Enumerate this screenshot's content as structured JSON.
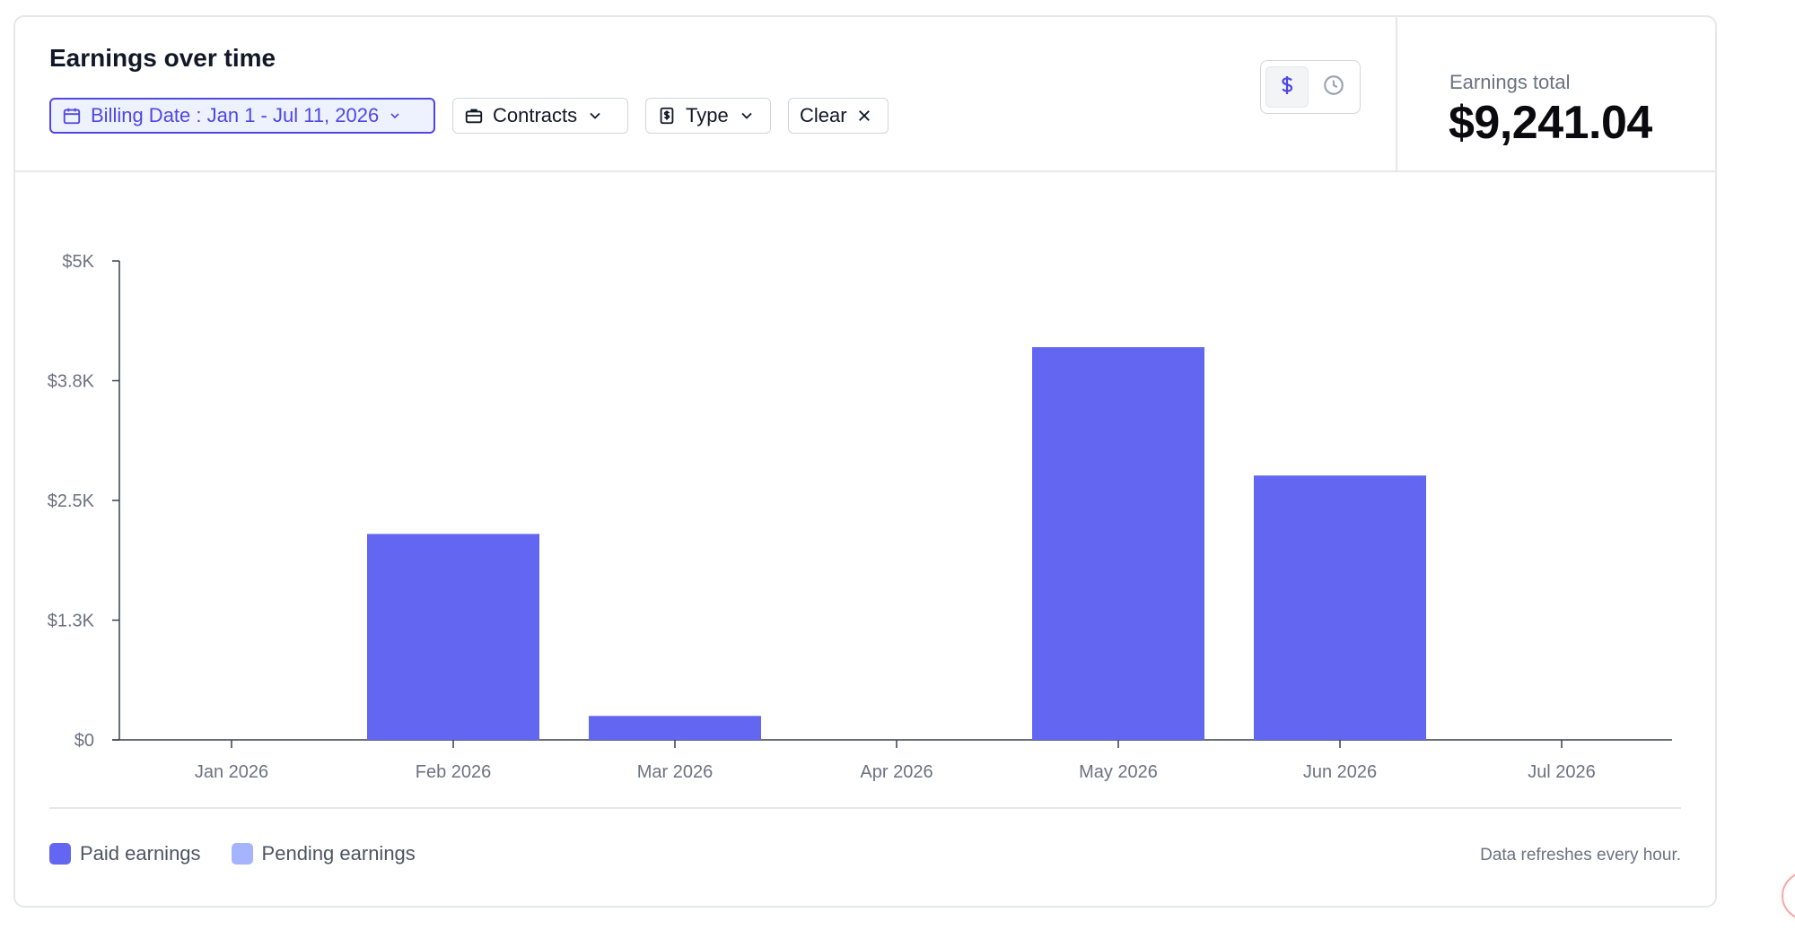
{
  "header": {
    "title": "Earnings over time"
  },
  "filters": {
    "billing_date": "Billing Date : Jan 1 - Jul 11, 2026",
    "contracts": "Contracts",
    "type": "Type",
    "clear": "Clear"
  },
  "view_toggle": {
    "options": [
      "dollar-icon",
      "clock-icon"
    ],
    "selected": "dollar-icon"
  },
  "summary": {
    "label": "Earnings total",
    "value": "$9,241.04"
  },
  "colors": {
    "accent": "#4f46e5",
    "paid": "#6366f1",
    "pending": "#a5b4fc",
    "axis": "#6b7280",
    "tick_text": "#6b7280"
  },
  "chart_data": {
    "type": "bar",
    "categories": [
      "Jan 2026",
      "Feb 2026",
      "Mar 2026",
      "Apr 2026",
      "May 2026",
      "Jun 2026",
      "Jul 2026"
    ],
    "series": [
      {
        "name": "Paid earnings",
        "values": [
          0,
          2150,
          250,
          0,
          4100,
          2760,
          0
        ]
      },
      {
        "name": "Pending earnings",
        "values": [
          0,
          0,
          0,
          0,
          0,
          0,
          0
        ]
      }
    ],
    "y_ticks": [
      0,
      1250,
      2500,
      3750,
      5000
    ],
    "y_tick_labels": [
      "$0",
      "$1.3K",
      "$2.5K",
      "$3.8K",
      "$5K"
    ],
    "ylim": [
      0,
      5000
    ],
    "xlabel": "",
    "ylabel": "",
    "grid": false,
    "legend_position": "bottom-left"
  },
  "legend": {
    "paid": "Paid earnings",
    "pending": "Pending earnings"
  },
  "footer": {
    "note": "Data refreshes every hour."
  }
}
